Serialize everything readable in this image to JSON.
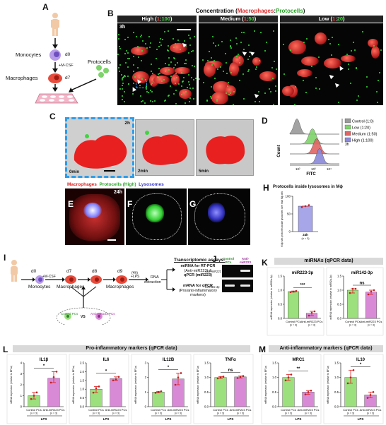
{
  "panels": {
    "A": "A",
    "B": "B",
    "C": "C",
    "D": "D",
    "E": "E",
    "F": "F",
    "G": "G",
    "H": "H",
    "I": "I",
    "J": "J",
    "K": "K",
    "L": "L",
    "M": "M"
  },
  "panelA": {
    "monocytes": "Monocytes",
    "d0": "d0",
    "mcsf": "+M-CSF",
    "macrophages": "Macrophages",
    "d7": "d7",
    "protocells": "Protocells"
  },
  "panelB": {
    "title_prefix": "Concentration (",
    "title_macrophages": "Macrophages",
    "title_colon": ":",
    "title_protocells": "Protocells",
    "title_suffix": ")",
    "time": "3h",
    "cols": [
      {
        "name": "High (",
        "ratio_a": "1",
        "colon": ":",
        "ratio_b": "100",
        "close": ")"
      },
      {
        "name": "Medium (",
        "ratio_a": "1",
        "colon": ":",
        "ratio_b": "50",
        "close": ")"
      },
      {
        "name": "Low (",
        "ratio_a": "1",
        "colon": ":",
        "ratio_b": "20",
        "close": ")"
      }
    ]
  },
  "panelC": {
    "time": "2h",
    "frames": [
      "0min",
      "2min",
      "5min"
    ]
  },
  "panelD": {
    "xlabel": "FITC",
    "ylabel": "Count",
    "side": "3h",
    "legend": [
      {
        "label": "Control (1:0)",
        "color": "#9a9a9a"
      },
      {
        "label": "Low (1:20)",
        "color": "#7ed36a"
      },
      {
        "label": "Medium (1:50)",
        "color": "#e06464"
      },
      {
        "label": "High (1:100)",
        "color": "#8a88d8"
      }
    ],
    "ticks": [
      "10²",
      "10³",
      "10⁴"
    ]
  },
  "panelEFG": {
    "legend_macrophages": "Macrophages",
    "legend_protocells": "Protocells (High)",
    "legend_lysosomes": "Lysosomes",
    "time": "24h"
  },
  "panelH": {
    "title": "Protocells inside lysosomes in Mϕ",
    "ylabel": "% Mϕ with protocells inside lysosomes over total Mϕ with protocells",
    "category": "24h",
    "n": "(n = 3)",
    "yticks": [
      "0",
      "50",
      "100"
    ]
  },
  "panelI": {
    "d0": "d0",
    "mcsf": "+M-CSF",
    "d7": "d7",
    "d8": "d8",
    "d9": "d9",
    "lps_time": "(4h)",
    "lps": "+LPS",
    "rna": "RNA",
    "extraction": "extraction",
    "monocytes": "Monocytes",
    "macrophages1": "Macrophages",
    "macrophages2": "Macrophages",
    "control": "Control PCs",
    "vs": "VS",
    "anti": "Anti-miR223 PCs",
    "assays_title": "Transcriptomic assays:",
    "assay1_l1": "miRNA for RT-PCR",
    "assay1_l2": "(Anti-miR223) &",
    "assay1_l3": "qPCR (miR223)",
    "assay2_l1": "mRNA for qPCR",
    "assay2_l2": "(Pro/anti-inflammatory",
    "assay2_l3": "markers)"
  },
  "panelJ": {
    "col1": "Control PCs",
    "col2": "Anti-miR223 PCs",
    "row1": "Anti-miR223",
    "row2": "miR92a-3p"
  },
  "bands": {
    "K": "miRNAs (qPCR data)",
    "L": "Pro-inflammatory markers (qPCR data)",
    "M": "Anti-inflammatory markers (qPCR data)"
  },
  "chart_data": [
    {
      "type": "bar",
      "panel": "K",
      "title": "miR223-3p",
      "categories": [
        "Control PCs",
        "Anti-miR223 PCs"
      ],
      "n": [
        "(n = 3)",
        "(n = 3)"
      ],
      "values": [
        0.95,
        0.18
      ],
      "points": [
        [
          0.93,
          0.95,
          0.97
        ],
        [
          0.1,
          0.2,
          0.25
        ]
      ],
      "ylim": [
        0,
        1.5
      ],
      "yticks": [
        "0.0",
        "0.5",
        "1.0",
        "1.5"
      ],
      "sig": "***",
      "ylabel": "miRNA expression (relative to miR92a-3p)",
      "colors": [
        "#9be07c",
        "#d98ad6"
      ]
    },
    {
      "type": "bar",
      "panel": "K",
      "title": "miR142-3p",
      "categories": [
        "Control PCs",
        "Anti-miR223 PCs"
      ],
      "n": [
        "(n = 3)",
        "(n = 3)"
      ],
      "values": [
        1.0,
        0.93
      ],
      "points": [
        [
          0.9,
          1.05,
          1.05
        ],
        [
          0.85,
          0.95,
          1.0
        ]
      ],
      "ylim": [
        0,
        1.5
      ],
      "yticks": [
        "0.0",
        "0.5",
        "1.0",
        "1.5"
      ],
      "sig": "ns",
      "ylabel": "miRNA expression (relative to miR92a-3p)",
      "colors": [
        "#9be07c",
        "#d98ad6"
      ]
    },
    {
      "type": "bar",
      "panel": "L",
      "title": "IL1β",
      "categories": [
        "Control PCs",
        "Anti-miR223 PCs"
      ],
      "n": [
        "(n = 3)",
        "(n = 3)"
      ],
      "values": [
        1.0,
        2.6
      ],
      "points": [
        [
          0.7,
          1.0,
          1.3
        ],
        [
          2.2,
          2.7,
          3.2
        ]
      ],
      "ylim": [
        0,
        4
      ],
      "yticks": [
        "0",
        "1",
        "2",
        "3",
        "4"
      ],
      "sig": "*",
      "ylabel": "mRNA expression (relative to EF1α)",
      "xgroup": "LPS",
      "colors": [
        "#9be07c",
        "#d98ad6"
      ]
    },
    {
      "type": "bar",
      "panel": "L",
      "title": "IL6",
      "categories": [
        "Control PCs",
        "Anti-miR223 PCs"
      ],
      "n": [
        "(n = 3)",
        "(n = 3)"
      ],
      "values": [
        1.0,
        1.6
      ],
      "points": [
        [
          0.8,
          1.05,
          1.15
        ],
        [
          1.5,
          1.55,
          1.7
        ]
      ],
      "ylim": [
        0,
        2.5
      ],
      "yticks": [
        "0.0",
        "0.5",
        "1.0",
        "1.5",
        "2.0",
        "2.5"
      ],
      "sig": "*",
      "ylabel": "mRNA expression (relative to EF1α)",
      "xgroup": "LPS",
      "colors": [
        "#9be07c",
        "#d98ad6"
      ]
    },
    {
      "type": "bar",
      "panel": "L",
      "title": "IL12B",
      "categories": [
        "Control PCs",
        "Anti-miR223 PCs"
      ],
      "n": [
        "(n = 3)",
        "(n = 3)"
      ],
      "values": [
        1.0,
        1.9
      ],
      "points": [
        [
          0.95,
          1.0,
          1.05
        ],
        [
          1.5,
          2.0,
          2.3
        ]
      ],
      "ylim": [
        0,
        3
      ],
      "yticks": [
        "0",
        "1",
        "2",
        "3"
      ],
      "sig": "*",
      "ylabel": "mRNA expression (relative to EF1α)",
      "xgroup": "LPS",
      "colors": [
        "#9be07c",
        "#d98ad6"
      ]
    },
    {
      "type": "bar",
      "panel": "L",
      "title": "TNFα",
      "categories": [
        "Control PCs",
        "Anti-miR223 PCs"
      ],
      "n": [
        "(n = 3)",
        "(n = 3)"
      ],
      "values": [
        1.0,
        1.02
      ],
      "points": [
        [
          0.97,
          1.0,
          1.03
        ],
        [
          0.98,
          1.02,
          1.05
        ]
      ],
      "ylim": [
        0,
        1.5
      ],
      "yticks": [
        "0.0",
        "0.5",
        "1.0",
        "1.5"
      ],
      "sig": "ns",
      "ylabel": "mRNA expression (relative to EF1α)",
      "xgroup": "LPS",
      "colors": [
        "#9be07c",
        "#d98ad6"
      ]
    },
    {
      "type": "bar",
      "panel": "M",
      "title": "MRC1",
      "categories": [
        "Control PCs",
        "Anti-miR223 PCs"
      ],
      "n": [
        "(n = 3)",
        "(n = 3)"
      ],
      "values": [
        1.0,
        0.5
      ],
      "points": [
        [
          0.9,
          1.0,
          1.1
        ],
        [
          0.42,
          0.5,
          0.55
        ]
      ],
      "ylim": [
        0,
        1.5
      ],
      "yticks": [
        "0.0",
        "0.5",
        "1.0",
        "1.5"
      ],
      "sig": "**",
      "ylabel": "mRNA expression (relative to EF1α)",
      "xgroup": "LPS",
      "colors": [
        "#9be07c",
        "#d98ad6"
      ]
    },
    {
      "type": "bar",
      "panel": "M",
      "title": "IL10",
      "categories": [
        "Control PCs",
        "Anti-miR223 PCs"
      ],
      "n": [
        "(n = 3)",
        "(n = 3)"
      ],
      "values": [
        1.0,
        0.4
      ],
      "points": [
        [
          0.8,
          1.0,
          1.25
        ],
        [
          0.3,
          0.4,
          0.5
        ]
      ],
      "ylim": [
        0,
        1.5
      ],
      "yticks": [
        "0.0",
        "0.5",
        "1.0",
        "1.5"
      ],
      "sig": "*",
      "ylabel": "mRNA expression (relative to EF1α)",
      "xgroup": "LPS",
      "colors": [
        "#9be07c",
        "#d98ad6"
      ]
    },
    {
      "type": "bar",
      "panel": "H",
      "title": "",
      "categories": [
        "24h"
      ],
      "values": [
        72
      ],
      "points": [
        [
          69,
          72,
          75
        ]
      ],
      "ylim": [
        0,
        100
      ],
      "colors": [
        "#a6a6e8"
      ]
    }
  ]
}
